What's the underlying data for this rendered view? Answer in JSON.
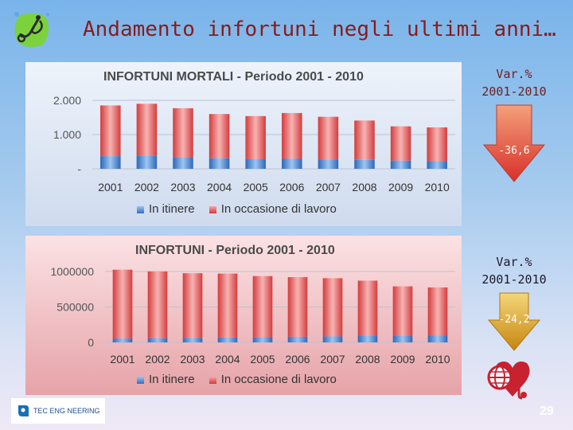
{
  "slide": {
    "title": "Andamento infortuni negli ultimi anni…",
    "page_number": "29"
  },
  "variations": [
    {
      "label_line1": "Var.%",
      "label_line2": "2001-2010",
      "value": "-36,6",
      "color": "#e0412e"
    },
    {
      "label_line1": "Var.%",
      "label_line2": "2001-2010",
      "value": "-24,2",
      "color": "#d79a1a"
    }
  ],
  "footer": {
    "logo_text": "TEC ENG NEERING",
    "icon": "globe-heart-icon"
  },
  "chart_data": [
    {
      "type": "bar",
      "title": "INFORTUNI MORTALI - Periodo 2001 - 2010",
      "categories": [
        "2001",
        "2002",
        "2003",
        "2004",
        "2005",
        "2006",
        "2007",
        "2008",
        "2009",
        "2010"
      ],
      "series": [
        {
          "name": "In itinere",
          "values": [
            370,
            390,
            340,
            310,
            280,
            290,
            270,
            260,
            240,
            230
          ],
          "color": "#3a78cc"
        },
        {
          "name": "In occasione di lavoro",
          "values": [
            1480,
            1510,
            1430,
            1290,
            1260,
            1340,
            1250,
            1150,
            1000,
            980
          ],
          "color": "#e04848"
        }
      ],
      "ylim": [
        0,
        2000
      ],
      "yticks": [
        "-",
        "1.000",
        "2.000"
      ],
      "grid": true,
      "legend": "bottom"
    },
    {
      "type": "bar",
      "title": "INFORTUNI - Periodo 2001 - 2010",
      "categories": [
        "2001",
        "2002",
        "2003",
        "2004",
        "2005",
        "2006",
        "2007",
        "2008",
        "2009",
        "2010"
      ],
      "series": [
        {
          "name": "In itinere",
          "values": [
            55000,
            60000,
            65000,
            70000,
            75000,
            80000,
            85000,
            90000,
            90000,
            95000
          ],
          "color": "#3a78cc"
        },
        {
          "name": "In occasione di lavoro",
          "values": [
            970000,
            940000,
            910000,
            900000,
            860000,
            840000,
            820000,
            780000,
            700000,
            680000
          ],
          "color": "#e04848"
        }
      ],
      "ylim": [
        0,
        1100000
      ],
      "yticks": [
        "0",
        "500000",
        "1000000"
      ],
      "grid": true,
      "legend": "bottom"
    }
  ]
}
